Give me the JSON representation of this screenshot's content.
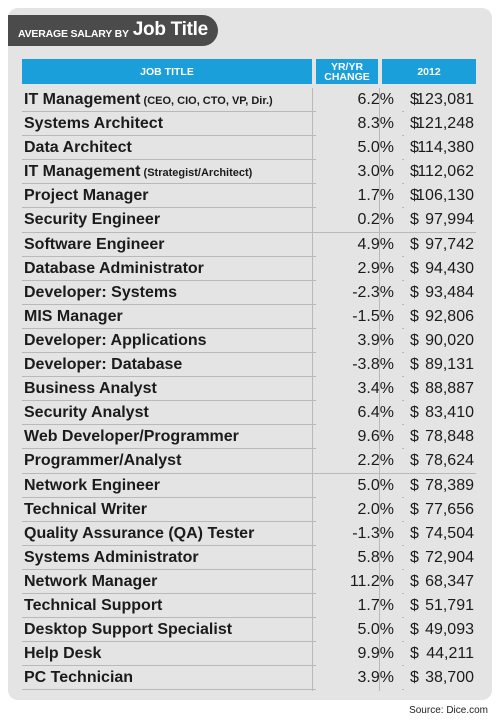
{
  "title": {
    "small": "AVERAGE SALARY BY",
    "big": "Job Title"
  },
  "headers": {
    "job": "JOB TITLE",
    "change_line1": "YR/YR",
    "change_line2": "CHANGE",
    "salary": "2012"
  },
  "source": "Source: Dice.com",
  "colors": {
    "header_blue": "#1b9fdb",
    "title_bg": "#4b4b4b",
    "panel_bg": "#e4e4e4"
  },
  "rows": [
    {
      "job": "IT Management",
      "note": "(CEO, CIO, CTO, VP, Dir.)",
      "change": "6.2%",
      "salary": "$123,081"
    },
    {
      "job": "Systems Architect",
      "note": "",
      "change": "8.3%",
      "salary": "$121,248"
    },
    {
      "job": "Data Architect",
      "note": "",
      "change": "5.0%",
      "salary": "$114,380"
    },
    {
      "job": "IT Management",
      "note": "(Strategist/Architect)",
      "change": "3.0%",
      "salary": "$112,062"
    },
    {
      "job": "Project Manager",
      "note": "",
      "change": "1.7%",
      "salary": "$106,130"
    },
    {
      "job": "Security Engineer",
      "note": "",
      "change": "0.2%",
      "salary": "$ 97,994"
    },
    {
      "job": "Software Engineer",
      "note": "",
      "change": "4.9%",
      "salary": "$ 97,742"
    },
    {
      "job": "Database Administrator",
      "note": "",
      "change": "2.9%",
      "salary": "$ 94,430"
    },
    {
      "job": "Developer: Systems",
      "note": "",
      "change": "-2.3%",
      "salary": "$ 93,484"
    },
    {
      "job": "MIS Manager",
      "note": "",
      "change": "-1.5%",
      "salary": "$ 92,806"
    },
    {
      "job": "Developer: Applications",
      "note": "",
      "change": "3.9%",
      "salary": "$ 90,020"
    },
    {
      "job": "Developer: Database",
      "note": "",
      "change": "-3.8%",
      "salary": "$ 89,131"
    },
    {
      "job": "Business Analyst",
      "note": "",
      "change": "3.4%",
      "salary": "$ 88,887"
    },
    {
      "job": "Security Analyst",
      "note": "",
      "change": "6.4%",
      "salary": "$ 83,410"
    },
    {
      "job": "Web Developer/Programmer",
      "note": "",
      "change": "9.6%",
      "salary": "$ 78,848"
    },
    {
      "job": "Programmer/Analyst",
      "note": "",
      "change": "2.2%",
      "salary": "$ 78,624"
    },
    {
      "job": "Network Engineer",
      "note": "",
      "change": "5.0%",
      "salary": "$ 78,389"
    },
    {
      "job": "Technical Writer",
      "note": "",
      "change": "2.0%",
      "salary": "$ 77,656"
    },
    {
      "job": "Quality Assurance (QA) Tester",
      "note": "",
      "change": "-1.3%",
      "salary": "$ 74,504"
    },
    {
      "job": "Systems Administrator",
      "note": "",
      "change": "5.8%",
      "salary": "$ 72,904"
    },
    {
      "job": "Network Manager",
      "note": "",
      "change": "11.2%",
      "salary": "$ 68,347"
    },
    {
      "job": "Technical Support",
      "note": "",
      "change": "1.7%",
      "salary": "$ 51,791"
    },
    {
      "job": "Desktop Support Specialist",
      "note": "",
      "change": "5.0%",
      "salary": "$ 49,093"
    },
    {
      "job": "Help Desk",
      "note": "",
      "change": "9.9%",
      "salary": "$ 44,211"
    },
    {
      "job": "PC Technician",
      "note": "",
      "change": "3.9%",
      "salary": "$ 38,700"
    }
  ],
  "chart_data": {
    "type": "table",
    "title": "AVERAGE SALARY BY Job Title",
    "columns": [
      "JOB TITLE",
      "YR/YR CHANGE",
      "2012"
    ],
    "rows": [
      [
        "IT Management (CEO, CIO, CTO, VP, Dir.)",
        "6.2%",
        "$123,081"
      ],
      [
        "Systems Architect",
        "8.3%",
        "$121,248"
      ],
      [
        "Data Architect",
        "5.0%",
        "$114,380"
      ],
      [
        "IT Management (Strategist/Architect)",
        "3.0%",
        "$112,062"
      ],
      [
        "Project Manager",
        "1.7%",
        "$106,130"
      ],
      [
        "Security Engineer",
        "0.2%",
        "$ 97,994"
      ],
      [
        "Software Engineer",
        "4.9%",
        "$ 97,742"
      ],
      [
        "Database Administrator",
        "2.9%",
        "$ 94,430"
      ],
      [
        "Developer: Systems",
        "-2.3%",
        "$ 93,484"
      ],
      [
        "MIS Manager",
        "-1.5%",
        "$ 92,806"
      ],
      [
        "Developer: Applications",
        "3.9%",
        "$ 90,020"
      ],
      [
        "Developer: Database",
        "-3.8%",
        "$ 89,131"
      ],
      [
        "Business Analyst",
        "3.4%",
        "$ 88,887"
      ],
      [
        "Security Analyst",
        "6.4%",
        "$ 83,410"
      ],
      [
        "Web Developer/Programmer",
        "9.6%",
        "$ 78,848"
      ],
      [
        "Programmer/Analyst",
        "2.2%",
        "$ 78,624"
      ],
      [
        "Network Engineer",
        "5.0%",
        "$ 78,389"
      ],
      [
        "Technical Writer",
        "2.0%",
        "$ 77,656"
      ],
      [
        "Quality Assurance (QA) Tester",
        "-1.3%",
        "$ 74,504"
      ],
      [
        "Systems Administrator",
        "5.8%",
        "$ 72,904"
      ],
      [
        "Network Manager",
        "11.2%",
        "$ 68,347"
      ],
      [
        "Technical Support",
        "1.7%",
        "$ 51,791"
      ],
      [
        "Desktop Support Specialist",
        "5.0%",
        "$ 49,093"
      ],
      [
        "Help Desk",
        "9.9%",
        "$ 44,211"
      ],
      [
        "PC Technician",
        "3.9%",
        "$ 38,700"
      ]
    ]
  }
}
